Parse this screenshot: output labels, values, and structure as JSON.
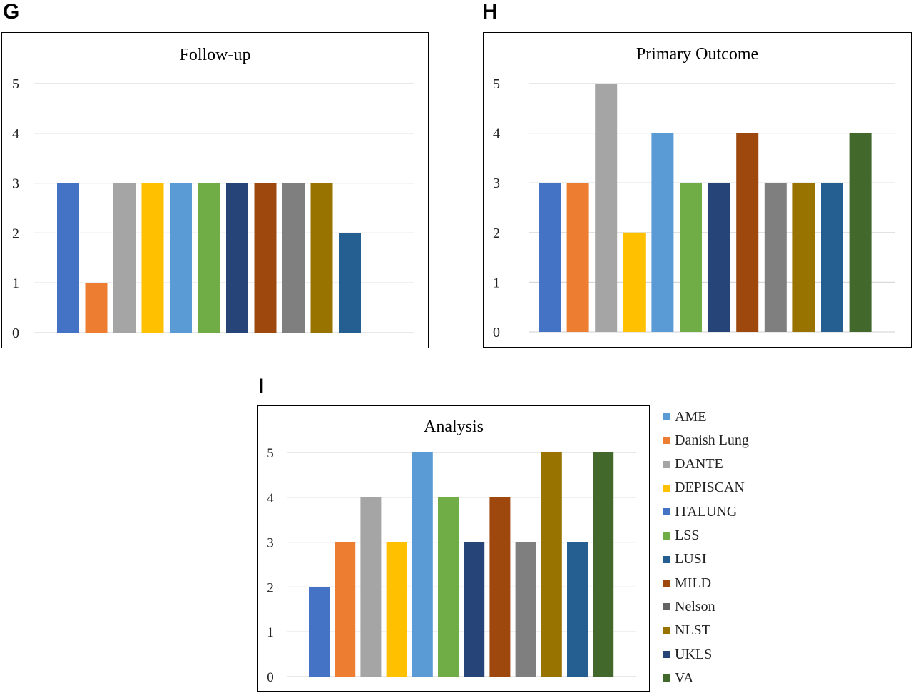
{
  "panels": {
    "g": {
      "letter": "G"
    },
    "h": {
      "letter": "H"
    },
    "i": {
      "letter": "I"
    }
  },
  "legend": [
    {
      "label": "AME",
      "color": "#5B9BD5"
    },
    {
      "label": "Danish Lung",
      "color": "#ED7D31"
    },
    {
      "label": "DANTE",
      "color": "#A5A5A5"
    },
    {
      "label": "DEPISCAN",
      "color": "#FFC000"
    },
    {
      "label": "ITALUNG",
      "color": "#4472C4"
    },
    {
      "label": "LSS",
      "color": "#70AD47"
    },
    {
      "label": "LUSI",
      "color": "#255E91"
    },
    {
      "label": "MILD",
      "color": "#9E480E"
    },
    {
      "label": "Nelson",
      "color": "#636363"
    },
    {
      "label": "NLST",
      "color": "#997300"
    },
    {
      "label": "UKLS",
      "color": "#264478"
    },
    {
      "label": "VA",
      "color": "#43682B"
    }
  ],
  "chart_data": [
    {
      "type": "bar",
      "title": "Follow-up",
      "ylim": [
        0,
        5
      ],
      "yticks": [
        "0",
        "1",
        "2",
        "3",
        "4",
        "5"
      ],
      "grid": true,
      "values": [
        3,
        1,
        3,
        3,
        3,
        3,
        3,
        3,
        3,
        3,
        2
      ],
      "colors": [
        "#4472C4",
        "#ED7D31",
        "#A5A5A5",
        "#FFC000",
        "#5B9BD5",
        "#70AD47",
        "#264478",
        "#9E480E",
        "#7F7F7F",
        "#997300",
        "#255E91"
      ]
    },
    {
      "type": "bar",
      "title": "Primary Outcome",
      "ylim": [
        0,
        5
      ],
      "yticks": [
        "0",
        "1",
        "2",
        "3",
        "4",
        "5"
      ],
      "grid": true,
      "values": [
        3,
        3,
        5,
        2,
        4,
        3,
        3,
        4,
        3,
        3,
        3,
        4
      ],
      "colors": [
        "#4472C4",
        "#ED7D31",
        "#A5A5A5",
        "#FFC000",
        "#5B9BD5",
        "#70AD47",
        "#264478",
        "#9E480E",
        "#7F7F7F",
        "#997300",
        "#255E91",
        "#43682B"
      ]
    },
    {
      "type": "bar",
      "title": "Analysis",
      "ylim": [
        0,
        5
      ],
      "yticks": [
        "0",
        "1",
        "2",
        "3",
        "4",
        "5"
      ],
      "grid": true,
      "legend_position": "right",
      "values": [
        2,
        3,
        4,
        3,
        5,
        4,
        3,
        4,
        3,
        5,
        3,
        5
      ],
      "colors": [
        "#4472C4",
        "#ED7D31",
        "#A5A5A5",
        "#FFC000",
        "#5B9BD5",
        "#70AD47",
        "#264478",
        "#9E480E",
        "#7F7F7F",
        "#997300",
        "#255E91",
        "#43682B"
      ]
    }
  ]
}
